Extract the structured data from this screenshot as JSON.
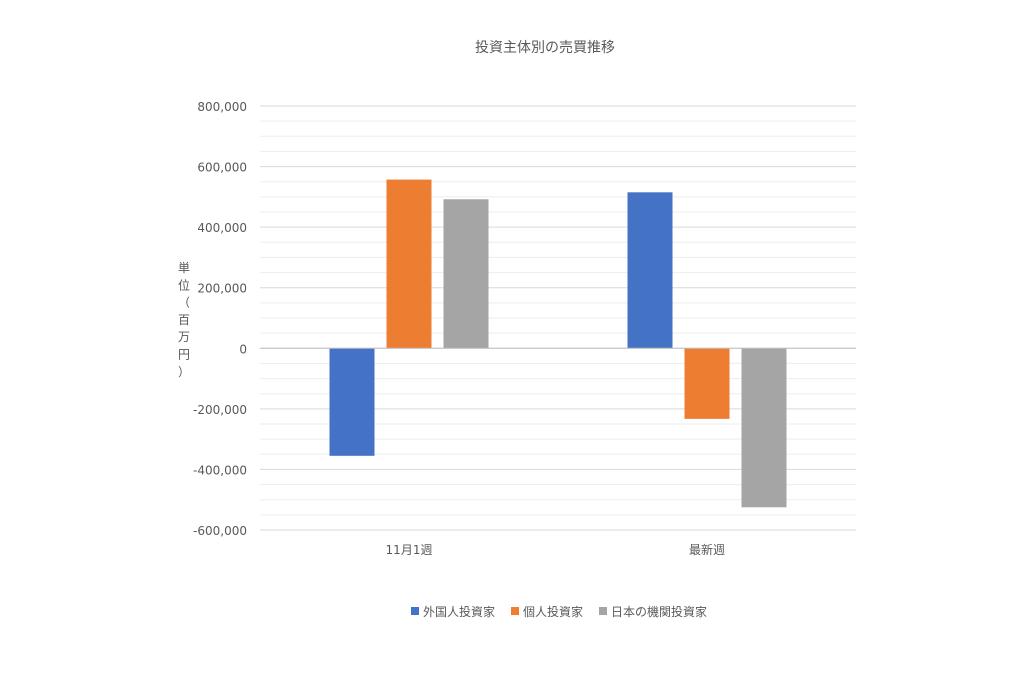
{
  "chart_data": {
    "type": "bar",
    "title": "投資主体別の売買推移",
    "ylabel": "単位（百万円）",
    "xlabel": "",
    "categories": [
      "11月1週",
      "最新週"
    ],
    "series": [
      {
        "name": "外国人投資家",
        "color": "#4472c4",
        "values": [
          -355000,
          515000
        ]
      },
      {
        "name": "個人投資家",
        "color": "#ed7d31",
        "values": [
          557000,
          -233000
        ]
      },
      {
        "name": "日本の機関投資家",
        "color": "#a5a5a5",
        "values": [
          492000,
          -525000
        ]
      }
    ],
    "ylim": [
      -600000,
      800000
    ],
    "yticks": [
      -600000,
      -400000,
      -200000,
      0,
      200000,
      400000,
      600000,
      800000
    ],
    "ytick_labels": [
      "-600,000",
      "-400,000",
      "-200,000",
      "0",
      "200,000",
      "400,000",
      "600,000",
      "800,000"
    ],
    "grid": true,
    "legend_position": "bottom"
  }
}
